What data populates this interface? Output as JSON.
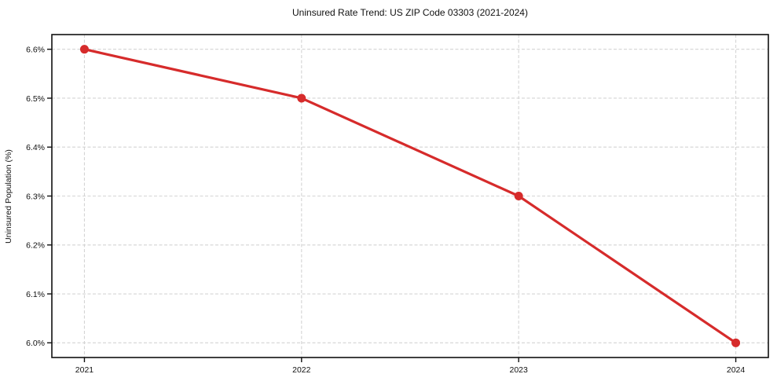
{
  "chart_data": {
    "type": "line",
    "title": "Uninsured Rate Trend: US ZIP Code 03303 (2021-2024)",
    "xlabel": "",
    "ylabel": "Uninsured Population (%)",
    "x": [
      2021,
      2022,
      2023,
      2024
    ],
    "values": [
      6.6,
      6.5,
      6.3,
      6.0
    ],
    "xticks": [
      2021,
      2022,
      2023,
      2024
    ],
    "yticks": [
      6.0,
      6.1,
      6.2,
      6.3,
      6.4,
      6.5,
      6.6
    ],
    "ytick_suffix": "%",
    "xlim": [
      2020.85,
      2024.15
    ],
    "ylim": [
      5.97,
      6.63
    ],
    "grid": true,
    "grid_style": "dashed",
    "legend": false,
    "colors": {
      "line": "#d62b2b",
      "marker": "#d62b2b",
      "grid": "#d4d4d4",
      "spine": "#111111",
      "background": "#ffffff"
    },
    "line_width": 3.2,
    "marker_radius": 5.5
  }
}
